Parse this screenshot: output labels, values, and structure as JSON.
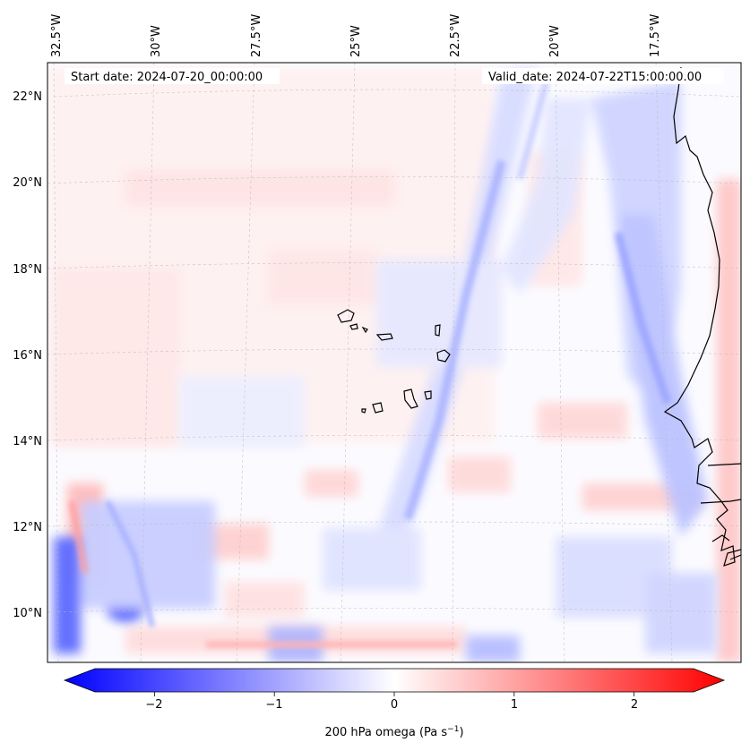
{
  "header": {
    "start_date": "Start date: 2024-07-20_00:00:00",
    "valid_date": "Valid_date: 2024-07-22T15:00:00.00"
  },
  "map": {
    "longitude_labels": [
      "32.5°W",
      "30°W",
      "27.5°W",
      "25°W",
      "22.5°W",
      "20°W",
      "17.5°W"
    ],
    "latitude_labels": [
      "22°N",
      "20°N",
      "18°N",
      "16°N",
      "14°N",
      "12°N",
      "10°N"
    ],
    "field": "200 hPa vertical velocity (omega)",
    "colormap": "bwr",
    "gridlines": true
  },
  "colorbar": {
    "ticks": [
      "−2",
      "−1",
      "0",
      "1",
      "2"
    ],
    "label": "200 hPa omega (Pa s",
    "label_exponent": "−1",
    "label_close": ")",
    "range": [
      -2.75,
      2.75
    ],
    "extend": "both",
    "colors": {
      "min": "#0000ff",
      "mid": "#ffffff",
      "max": "#ff0000"
    }
  }
}
